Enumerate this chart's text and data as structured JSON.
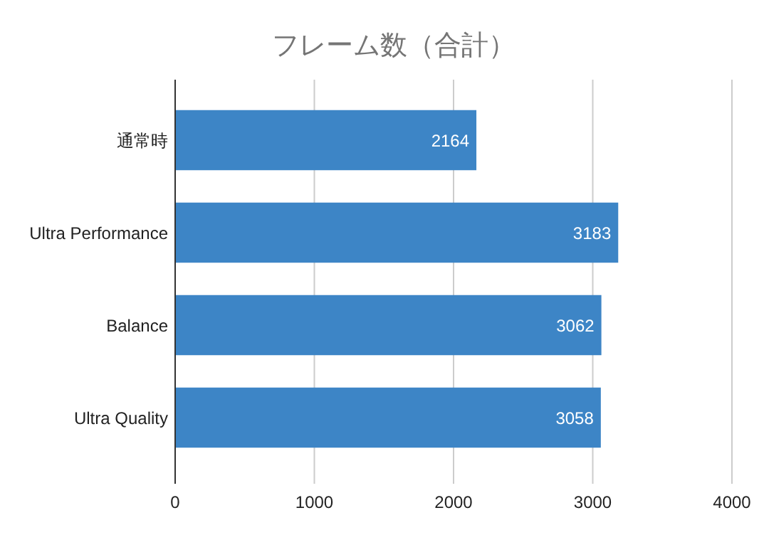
{
  "chart_data": {
    "type": "bar",
    "orientation": "horizontal",
    "title": "フレーム数（合計）",
    "categories": [
      "通常時",
      "Ultra Performance",
      "Balance",
      "Ultra Quality"
    ],
    "series": [
      {
        "color": "#3d85c6",
        "values": [
          2164,
          3183,
          3062,
          3058
        ]
      }
    ],
    "xlim": [
      0,
      4000
    ],
    "xticks": [
      0,
      1000,
      2000,
      3000,
      4000
    ],
    "grid": "x",
    "data_labels": true
  }
}
